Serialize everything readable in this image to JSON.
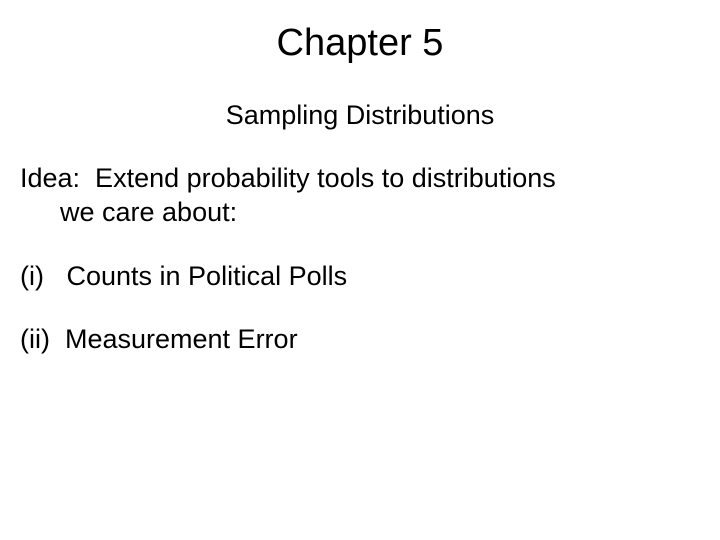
{
  "slide": {
    "title": "Chapter 5",
    "subtitle": "Sampling Distributions",
    "idea_line1": "Idea:  Extend probability tools to distributions",
    "idea_line2": "we care about:",
    "item1": "(i)   Counts in Political Polls",
    "item2": "(ii)  Measurement Error"
  },
  "style": {
    "background_color": "#ffffff",
    "text_color": "#000000",
    "font_family": "Arial",
    "title_fontsize": 38,
    "subtitle_fontsize": 27,
    "body_fontsize": 27
  }
}
